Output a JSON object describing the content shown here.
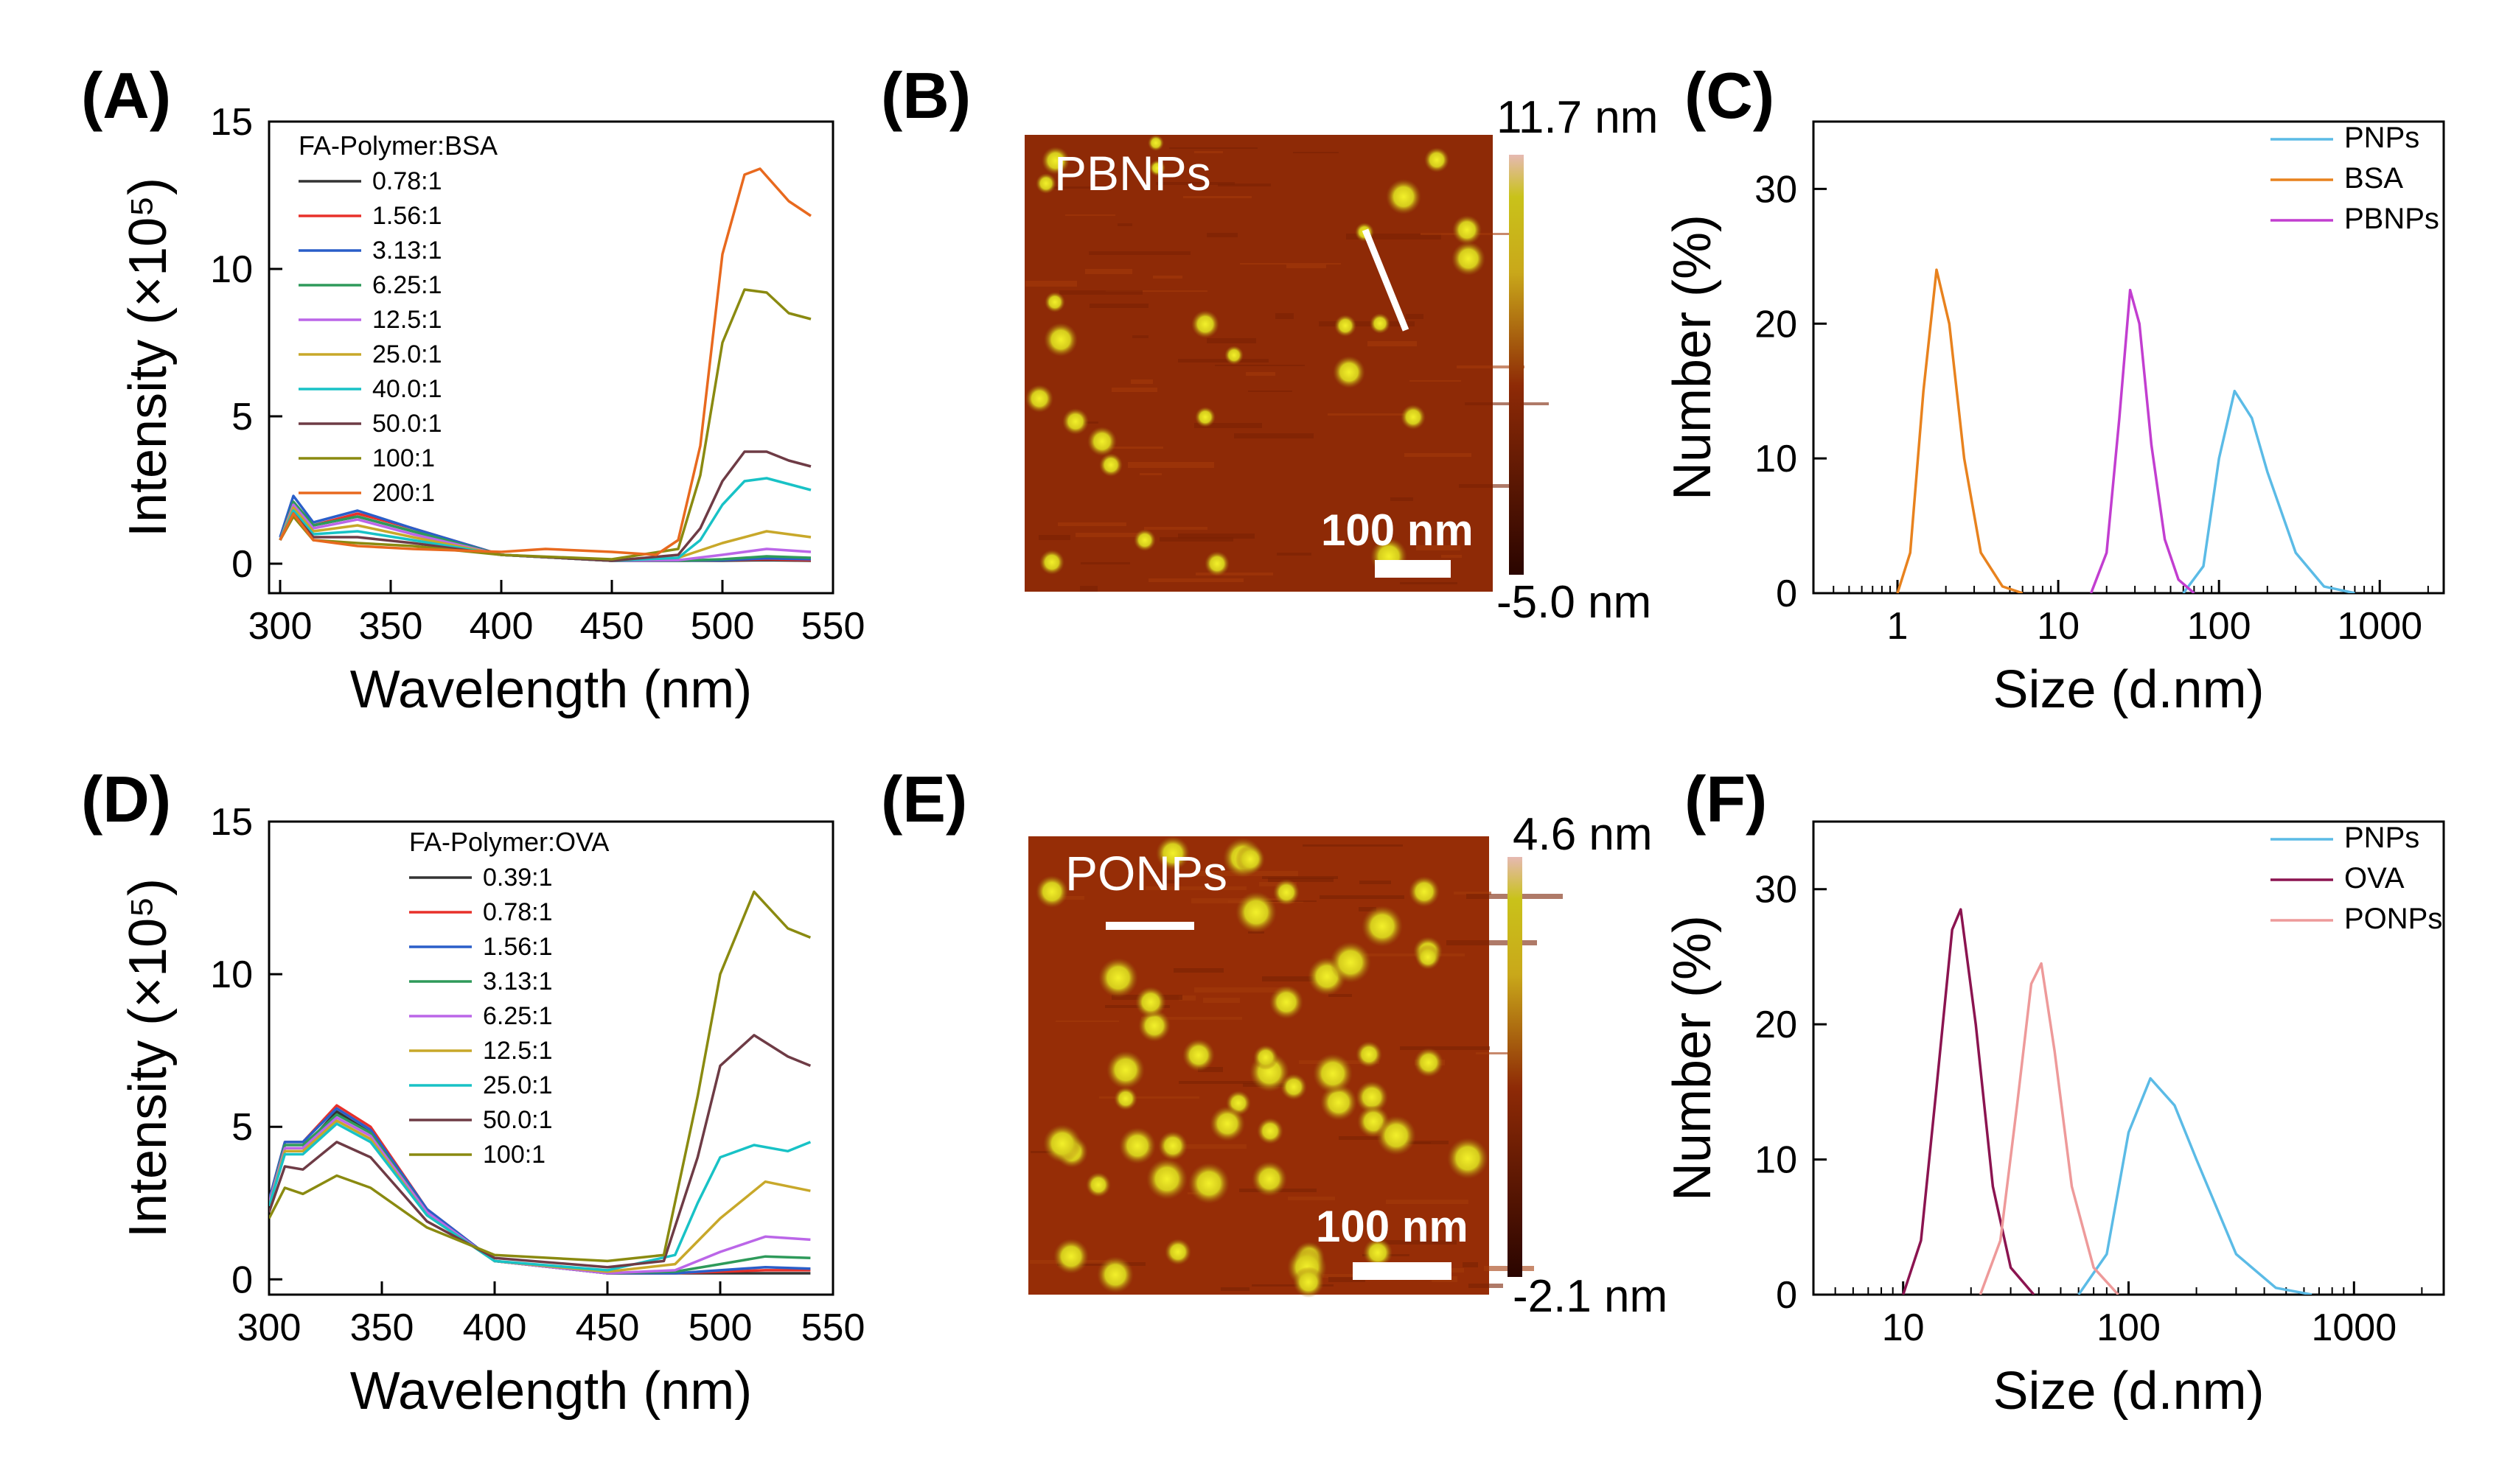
{
  "panel_labels": [
    "(A)",
    "(B)",
    "(C)",
    "(D)",
    "(E)",
    "(F)"
  ],
  "afm": [
    {
      "label": "PBNPs",
      "scale_bar": "100 nm",
      "color_max": "11.7 nm",
      "color_min": "-5.0 nm"
    },
    {
      "label": "PONPs",
      "scale_bar": "100 nm",
      "color_max": "4.6 nm",
      "color_min": "-2.1 nm"
    }
  ],
  "afm_colors": {
    "low": "#3d0800",
    "mid": "#8e2a06",
    "high": "#c9c21a",
    "top": "#e6b9b2"
  },
  "chart_data": [
    {
      "type": "line",
      "panel": "A",
      "xlabel": "Wavelength (nm)",
      "ylabel": "Intensity (×10⁵)",
      "xlim": [
        295,
        550
      ],
      "ylim": [
        -1,
        15
      ],
      "xticks": [
        300,
        350,
        400,
        450,
        500,
        550
      ],
      "yticks": [
        0,
        5,
        10,
        15
      ],
      "legend_title": "FA-Polymer:BSA",
      "legend_position": "top-left",
      "series": [
        {
          "name": "0.78:1",
          "color": "#333333",
          "x": [
            300,
            306,
            315,
            335,
            360,
            400,
            450,
            480,
            500,
            520,
            540
          ],
          "y": [
            0.8,
            2.0,
            1.3,
            1.6,
            1.1,
            0.3,
            0.1,
            0.1,
            0.1,
            0.12,
            0.1
          ]
        },
        {
          "name": "1.56:1",
          "color": "#e8302a",
          "x": [
            300,
            306,
            315,
            335,
            360,
            400,
            450,
            480,
            500,
            520,
            540
          ],
          "y": [
            0.8,
            2.1,
            1.3,
            1.7,
            1.2,
            0.3,
            0.1,
            0.1,
            0.12,
            0.15,
            0.12
          ]
        },
        {
          "name": "3.13:1",
          "color": "#2a5ec9",
          "x": [
            300,
            306,
            315,
            335,
            360,
            400,
            450,
            480,
            500,
            520,
            540
          ],
          "y": [
            0.9,
            2.3,
            1.4,
            1.8,
            1.2,
            0.3,
            0.1,
            0.1,
            0.12,
            0.18,
            0.15
          ]
        },
        {
          "name": "6.25:1",
          "color": "#2e9a5a",
          "x": [
            300,
            306,
            315,
            335,
            360,
            400,
            450,
            480,
            500,
            520,
            540
          ],
          "y": [
            0.8,
            2.1,
            1.3,
            1.6,
            1.1,
            0.3,
            0.1,
            0.1,
            0.15,
            0.25,
            0.2
          ]
        },
        {
          "name": "12.5:1",
          "color": "#bb66e8",
          "x": [
            300,
            306,
            315,
            335,
            360,
            400,
            450,
            480,
            500,
            520,
            540
          ],
          "y": [
            0.8,
            2.0,
            1.2,
            1.5,
            1.0,
            0.3,
            0.1,
            0.12,
            0.3,
            0.5,
            0.4
          ]
        },
        {
          "name": "25.0:1",
          "color": "#c8a82a",
          "x": [
            300,
            306,
            315,
            335,
            360,
            400,
            450,
            480,
            500,
            520,
            540
          ],
          "y": [
            0.8,
            1.9,
            1.1,
            1.3,
            0.9,
            0.3,
            0.1,
            0.2,
            0.7,
            1.1,
            0.9
          ]
        },
        {
          "name": "40.0:1",
          "color": "#18c2c6",
          "x": [
            300,
            306,
            315,
            335,
            360,
            400,
            450,
            480,
            490,
            500,
            510,
            520,
            530,
            540
          ],
          "y": [
            0.8,
            1.8,
            1.0,
            1.1,
            0.8,
            0.3,
            0.1,
            0.2,
            0.8,
            2.0,
            2.8,
            2.9,
            2.7,
            2.5
          ]
        },
        {
          "name": "50.0:1",
          "color": "#6e3b45",
          "x": [
            300,
            306,
            315,
            335,
            360,
            400,
            450,
            480,
            490,
            500,
            510,
            520,
            530,
            540
          ],
          "y": [
            0.8,
            1.7,
            0.9,
            0.9,
            0.7,
            0.3,
            0.1,
            0.3,
            1.2,
            2.8,
            3.8,
            3.8,
            3.5,
            3.3
          ]
        },
        {
          "name": " 100:1",
          "color": "#8a8a10",
          "x": [
            300,
            306,
            315,
            335,
            360,
            400,
            450,
            480,
            490,
            500,
            510,
            520,
            530,
            540
          ],
          "y": [
            0.8,
            1.6,
            0.8,
            0.7,
            0.6,
            0.3,
            0.15,
            0.5,
            3.0,
            7.5,
            9.3,
            9.2,
            8.5,
            8.3
          ]
        },
        {
          "name": "200:1",
          "color": "#e8691e",
          "x": [
            300,
            306,
            315,
            335,
            360,
            400,
            420,
            450,
            470,
            480,
            490,
            500,
            510,
            517,
            530,
            540
          ],
          "y": [
            0.8,
            1.7,
            0.8,
            0.6,
            0.5,
            0.4,
            0.5,
            0.4,
            0.3,
            0.8,
            4.0,
            10.5,
            13.2,
            13.4,
            12.3,
            11.8
          ]
        }
      ]
    },
    {
      "type": "line",
      "panel": "C",
      "xlabel": "Size (d.nm)",
      "ylabel": "Number (%)",
      "xscale": "log",
      "xlim": [
        0.3,
        2500
      ],
      "ylim": [
        0,
        35
      ],
      "xticks": [
        1,
        10,
        100,
        1000
      ],
      "yticks": [
        0,
        10,
        20,
        30
      ],
      "legend_position": "top-right",
      "series": [
        {
          "name": "PNPs",
          "color": "#5bbbe6",
          "x": [
            60,
            80,
            100,
            125,
            160,
            200,
            300,
            450,
            700
          ],
          "y": [
            0,
            2,
            10,
            15,
            13,
            9,
            3,
            0.5,
            0
          ]
        },
        {
          "name": "BSA",
          "color": "#e8821e",
          "x": [
            1.0,
            1.2,
            1.45,
            1.75,
            2.1,
            2.6,
            3.3,
            4.5,
            6.0
          ],
          "y": [
            0,
            3,
            15,
            24,
            20,
            10,
            3,
            0.5,
            0
          ]
        },
        {
          "name": "PBNPs",
          "color": "#c23ed0",
          "x": [
            16,
            20,
            24,
            28,
            32,
            38,
            46,
            56,
            70
          ],
          "y": [
            0,
            3,
            13,
            22.5,
            20,
            11,
            4,
            1,
            0
          ]
        }
      ]
    },
    {
      "type": "line",
      "panel": "D",
      "xlabel": "Wavelength (nm)",
      "ylabel": "Intensity (×10⁵)",
      "xlim": [
        300,
        550
      ],
      "ylim": [
        -0.5,
        15
      ],
      "xticks": [
        300,
        350,
        400,
        450,
        500,
        550
      ],
      "yticks": [
        0,
        5,
        10,
        15
      ],
      "legend_title": "FA-Polymer:OVA",
      "legend_position": "top-center",
      "series": [
        {
          "name": "0.39:1",
          "color": "#333333",
          "x": [
            300,
            307,
            315,
            330,
            345,
            370,
            400,
            450,
            480,
            500,
            520,
            540
          ],
          "y": [
            2.5,
            4.3,
            4.3,
            5.5,
            4.8,
            2.2,
            0.6,
            0.2,
            0.2,
            0.2,
            0.2,
            0.2
          ]
        },
        {
          "name": "0.78:1",
          "color": "#e8302a",
          "x": [
            300,
            307,
            315,
            330,
            345,
            370,
            400,
            450,
            480,
            500,
            520,
            540
          ],
          "y": [
            2.6,
            4.5,
            4.5,
            5.7,
            5.0,
            2.3,
            0.6,
            0.2,
            0.2,
            0.25,
            0.3,
            0.3
          ]
        },
        {
          "name": "1.56:1",
          "color": "#2a5ec9",
          "x": [
            300,
            307,
            315,
            330,
            345,
            370,
            400,
            450,
            480,
            500,
            520,
            540
          ],
          "y": [
            2.6,
            4.5,
            4.5,
            5.6,
            4.9,
            2.3,
            0.6,
            0.2,
            0.2,
            0.3,
            0.4,
            0.35
          ]
        },
        {
          "name": "3.13:1",
          "color": "#2e9a5a",
          "x": [
            300,
            307,
            315,
            330,
            345,
            370,
            400,
            450,
            480,
            500,
            520,
            540
          ],
          "y": [
            2.5,
            4.4,
            4.4,
            5.4,
            4.8,
            2.2,
            0.6,
            0.2,
            0.25,
            0.5,
            0.75,
            0.7
          ]
        },
        {
          "name": "6.25:1",
          "color": "#bb66e8",
          "x": [
            300,
            307,
            315,
            330,
            345,
            370,
            400,
            450,
            480,
            500,
            520,
            540
          ],
          "y": [
            2.5,
            4.3,
            4.3,
            5.3,
            4.7,
            2.2,
            0.6,
            0.2,
            0.3,
            0.9,
            1.4,
            1.3
          ]
        },
        {
          "name": "12.5:1",
          "color": "#c8a82a",
          "x": [
            300,
            307,
            315,
            330,
            345,
            370,
            400,
            450,
            480,
            500,
            520,
            540
          ],
          "y": [
            2.4,
            4.2,
            4.2,
            5.2,
            4.6,
            2.1,
            0.6,
            0.25,
            0.5,
            2.0,
            3.2,
            2.9
          ]
        },
        {
          "name": "25.0:1",
          "color": "#18c2c6",
          "x": [
            300,
            307,
            315,
            330,
            345,
            370,
            400,
            450,
            480,
            490,
            500,
            515,
            530,
            540
          ],
          "y": [
            2.4,
            4.1,
            4.1,
            5.1,
            4.5,
            2.1,
            0.6,
            0.3,
            0.8,
            2.5,
            4.0,
            4.4,
            4.2,
            4.5
          ]
        },
        {
          "name": "50.0:1",
          "color": "#6e3b45",
          "x": [
            300,
            307,
            315,
            330,
            345,
            370,
            400,
            450,
            475,
            490,
            500,
            515,
            530,
            540
          ],
          "y": [
            2.2,
            3.7,
            3.6,
            4.5,
            4.0,
            1.9,
            0.7,
            0.4,
            0.6,
            4.0,
            7.0,
            8.0,
            7.3,
            7.0
          ]
        },
        {
          "name": " 100:1",
          "color": "#8a8a10",
          "x": [
            300,
            307,
            315,
            330,
            345,
            370,
            400,
            450,
            475,
            490,
            500,
            515,
            530,
            540
          ],
          "y": [
            2.0,
            3.0,
            2.8,
            3.4,
            3.0,
            1.7,
            0.8,
            0.6,
            0.8,
            6.0,
            10.0,
            12.7,
            11.5,
            11.2
          ]
        }
      ]
    },
    {
      "type": "line",
      "panel": "F",
      "xlabel": "Size (d.nm)",
      "ylabel": "Number (%)",
      "xscale": "log",
      "xlim": [
        4,
        2500
      ],
      "ylim": [
        0,
        35
      ],
      "xticks": [
        10,
        100,
        1000
      ],
      "yticks": [
        0,
        10,
        20,
        30
      ],
      "legend_position": "top-right",
      "series": [
        {
          "name": "PNPs",
          "color": "#5bbbe6",
          "x": [
            60,
            80,
            100,
            125,
            160,
            200,
            300,
            450,
            650
          ],
          "y": [
            0,
            3,
            12,
            16,
            14,
            10,
            3,
            0.5,
            0
          ]
        },
        {
          "name": "OVA",
          "color": "#8b1450",
          "x": [
            10,
            12,
            14,
            16.5,
            18,
            21,
            25,
            30,
            38
          ],
          "y": [
            0,
            4,
            15,
            27,
            28.5,
            20,
            8,
            2,
            0
          ]
        },
        {
          "name": "PONPs",
          "color": "#ee9a9a",
          "x": [
            22,
            27,
            32,
            37,
            41,
            47,
            56,
            70,
            90
          ],
          "y": [
            0,
            4,
            14,
            23,
            24.5,
            18,
            8,
            2,
            0
          ]
        }
      ]
    }
  ]
}
